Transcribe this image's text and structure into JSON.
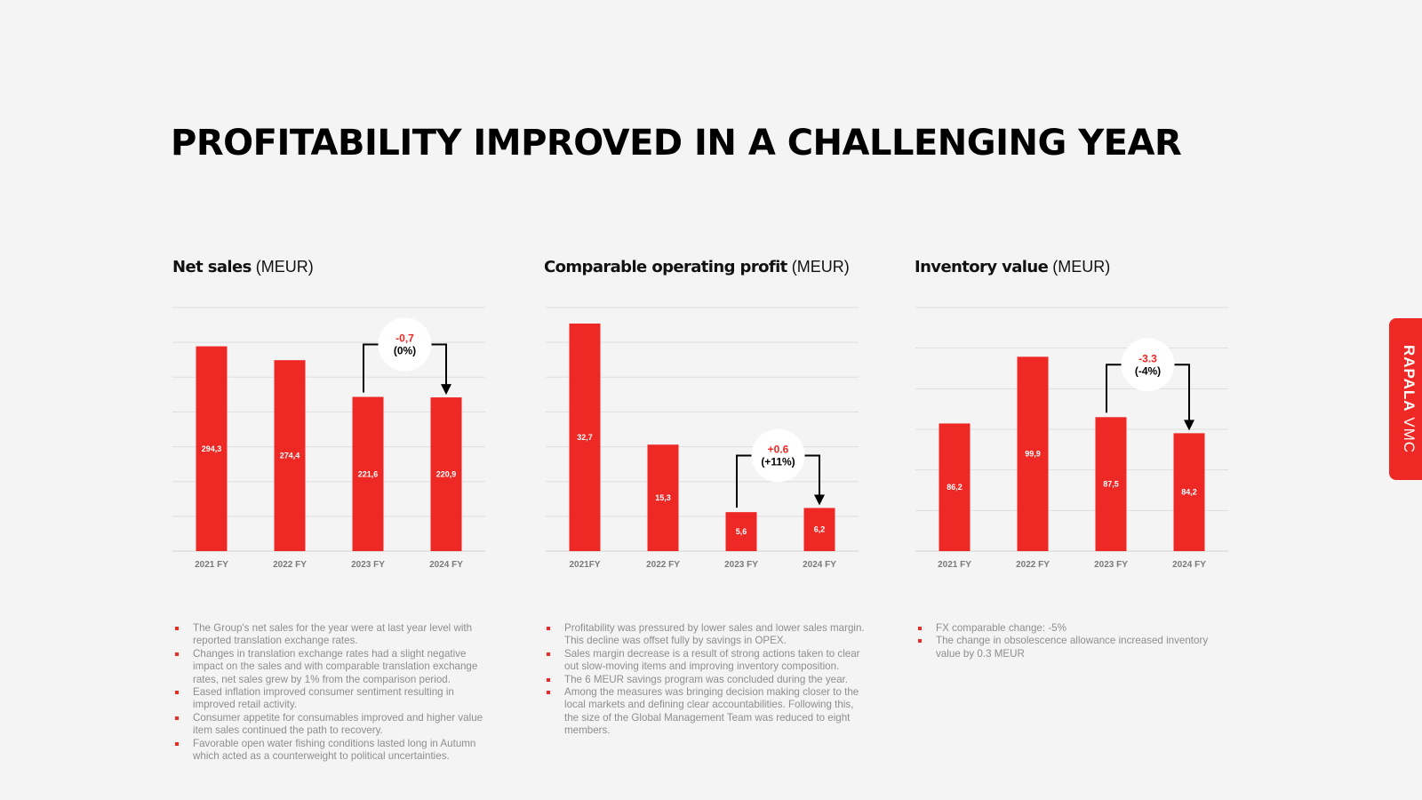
{
  "page": {
    "title": "PROFITABILITY IMPROVED IN A CHALLENGING YEAR",
    "brand": {
      "bold": "RAPALA",
      "light": "VMC"
    },
    "accent_color": "#ee2824"
  },
  "chart_data": [
    {
      "type": "bar",
      "title": "Net sales",
      "unit": "(MEUR)",
      "categories": [
        "2021 FY",
        "2022 FY",
        "2023 FY",
        "2024 FY"
      ],
      "values": [
        294.3,
        274.4,
        221.6,
        220.9
      ],
      "value_labels": [
        "294,3",
        "274,4",
        "221,6",
        "220,9"
      ],
      "ylim": [
        0,
        350
      ],
      "gridlines": 7,
      "annotation": {
        "from": 2,
        "to": 3,
        "value": "-0,7",
        "pct": "(0%)",
        "value_color": "#ee2824"
      }
    },
    {
      "type": "bar",
      "title": "Comparable operating profit",
      "unit": "(MEUR)",
      "categories": [
        "2021FY",
        "2022 FY",
        "2023 FY",
        "2024 FY"
      ],
      "values": [
        32.7,
        15.3,
        5.6,
        6.2
      ],
      "value_labels": [
        "32,7",
        "15,3",
        "5,6",
        "6,2"
      ],
      "ylim": [
        0,
        35
      ],
      "gridlines": 7,
      "annotation": {
        "from": 2,
        "to": 3,
        "value": "+0.6",
        "pct": "(+11%)",
        "value_color": "#ee2824"
      }
    },
    {
      "type": "bar",
      "title": "Inventory value",
      "unit": "(MEUR)",
      "categories": [
        "2021 FY",
        "2022 FY",
        "2023 FY",
        "2024 FY"
      ],
      "values": [
        86.2,
        99.9,
        87.5,
        84.2
      ],
      "value_labels": [
        "86,2",
        "99,9",
        "87,5",
        "84,2"
      ],
      "ylim": [
        60,
        110
      ],
      "gridlines": 6,
      "annotation": {
        "from": 2,
        "to": 3,
        "value": "-3.3",
        "pct": "(-4%)",
        "value_color": "#ee2824"
      }
    }
  ],
  "bullets": [
    [
      "The Group's net sales for the year were at last year level with reported translation exchange rates.",
      "Changes in translation exchange rates had a slight negative impact on the sales and with comparable translation exchange rates, net sales grew by 1% from the comparison period.",
      "Eased inflation improved consumer sentiment resulting in improved retail activity.",
      "Consumer appetite for consumables improved and higher value item sales continued the path to recovery.",
      "Favorable open water fishing conditions lasted long in Autumn which acted as a counterweight to political uncertainties."
    ],
    [
      "Profitability was pressured by lower sales and lower sales margin. This decline was offset fully by savings in OPEX.",
      "Sales margin decrease is a result of strong actions taken to clear out slow-moving items and improving inventory composition.",
      "The 6 MEUR savings program was concluded during the year.",
      "Among the measures was bringing decision making closer to the local markets and defining clear accountabilities. Following this, the size of the Global Management Team was reduced to eight members."
    ],
    [
      "FX comparable change: -5%",
      "The change in obsolescence allowance increased inventory value by 0.3 MEUR"
    ]
  ]
}
